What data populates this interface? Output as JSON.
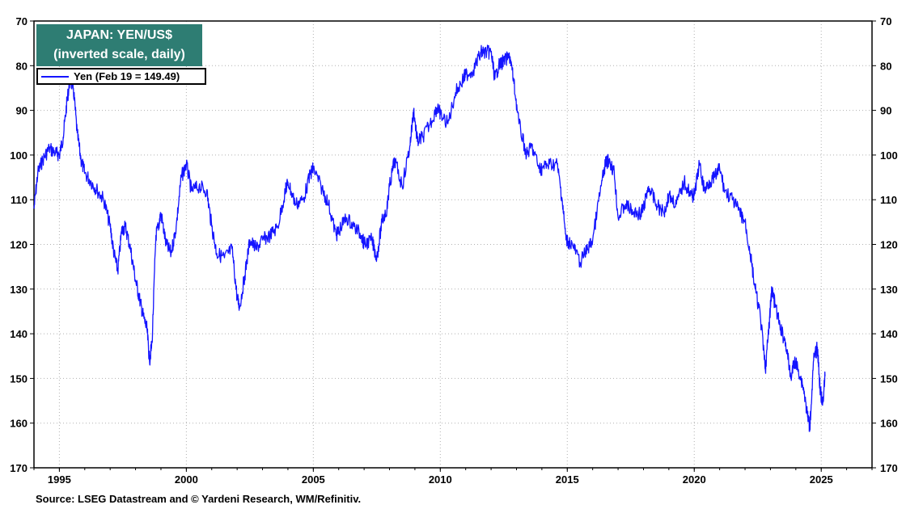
{
  "chart_data": {
    "type": "line",
    "title": "JAPAN: YEN/US$",
    "subtitle": "(inverted scale, daily)",
    "legend": "Yen (Feb 19 = 149.49)",
    "legend_position": "top-left",
    "y_inverted": true,
    "ylim": [
      70,
      170
    ],
    "y_ticks": [
      70,
      80,
      90,
      100,
      110,
      120,
      130,
      140,
      150,
      160,
      170
    ],
    "x_range": [
      1994,
      2027
    ],
    "x_ticks": [
      1995,
      2000,
      2005,
      2010,
      2015,
      2020,
      2025
    ],
    "grid": true,
    "line_color": "#1414ff",
    "series": [
      {
        "name": "Yen",
        "points": [
          [
            1994.0,
            112
          ],
          [
            1994.15,
            104
          ],
          [
            1994.35,
            101
          ],
          [
            1994.6,
            98.5
          ],
          [
            1994.85,
            99.5
          ],
          [
            1995.0,
            100
          ],
          [
            1995.15,
            96
          ],
          [
            1995.3,
            88
          ],
          [
            1995.42,
            83
          ],
          [
            1995.55,
            85
          ],
          [
            1995.7,
            95
          ],
          [
            1995.85,
            101
          ],
          [
            1996.0,
            104
          ],
          [
            1996.25,
            106
          ],
          [
            1996.5,
            108
          ],
          [
            1996.75,
            110
          ],
          [
            1997.0,
            116
          ],
          [
            1997.15,
            122
          ],
          [
            1997.3,
            126
          ],
          [
            1997.45,
            117
          ],
          [
            1997.6,
            116
          ],
          [
            1997.8,
            121
          ],
          [
            1998.0,
            128
          ],
          [
            1998.15,
            132
          ],
          [
            1998.3,
            136
          ],
          [
            1998.45,
            139
          ],
          [
            1998.55,
            146
          ],
          [
            1998.65,
            142
          ],
          [
            1998.8,
            118
          ],
          [
            1998.9,
            116
          ],
          [
            1999.0,
            113
          ],
          [
            1999.2,
            120
          ],
          [
            1999.4,
            122
          ],
          [
            1999.6,
            116
          ],
          [
            1999.8,
            105
          ],
          [
            2000.0,
            102
          ],
          [
            2000.2,
            108
          ],
          [
            2000.5,
            107
          ],
          [
            2000.8,
            108
          ],
          [
            2001.0,
            116
          ],
          [
            2001.2,
            122
          ],
          [
            2001.5,
            123
          ],
          [
            2001.8,
            121
          ],
          [
            2002.0,
            132
          ],
          [
            2002.1,
            134
          ],
          [
            2002.3,
            127
          ],
          [
            2002.5,
            119
          ],
          [
            2002.75,
            121
          ],
          [
            2003.0,
            119
          ],
          [
            2003.3,
            118
          ],
          [
            2003.6,
            116
          ],
          [
            2003.9,
            108
          ],
          [
            2004.0,
            106
          ],
          [
            2004.3,
            111
          ],
          [
            2004.6,
            110
          ],
          [
            2004.9,
            104
          ],
          [
            2005.0,
            103
          ],
          [
            2005.3,
            107
          ],
          [
            2005.6,
            111
          ],
          [
            2005.9,
            118
          ],
          [
            2006.0,
            117
          ],
          [
            2006.3,
            114
          ],
          [
            2006.6,
            116
          ],
          [
            2006.9,
            118
          ],
          [
            2007.0,
            120
          ],
          [
            2007.3,
            119
          ],
          [
            2007.5,
            123
          ],
          [
            2007.7,
            115
          ],
          [
            2007.9,
            112
          ],
          [
            2008.0,
            107
          ],
          [
            2008.2,
            101
          ],
          [
            2008.5,
            107
          ],
          [
            2008.8,
            98
          ],
          [
            2008.95,
            90
          ],
          [
            2009.1,
            97
          ],
          [
            2009.3,
            96
          ],
          [
            2009.6,
            93
          ],
          [
            2009.9,
            89
          ],
          [
            2010.0,
            91
          ],
          [
            2010.3,
            93
          ],
          [
            2010.6,
            86
          ],
          [
            2010.9,
            83
          ],
          [
            2011.0,
            82
          ],
          [
            2011.3,
            81
          ],
          [
            2011.6,
            77
          ],
          [
            2011.8,
            77
          ],
          [
            2012.0,
            77
          ],
          [
            2012.15,
            83
          ],
          [
            2012.3,
            80
          ],
          [
            2012.5,
            79
          ],
          [
            2012.75,
            78
          ],
          [
            2012.9,
            84
          ],
          [
            2013.1,
            93
          ],
          [
            2013.4,
            100
          ],
          [
            2013.6,
            98
          ],
          [
            2013.9,
            103
          ],
          [
            2014.0,
            103
          ],
          [
            2014.3,
            102
          ],
          [
            2014.6,
            102
          ],
          [
            2014.8,
            110
          ],
          [
            2014.95,
            119
          ],
          [
            2015.2,
            120
          ],
          [
            2015.5,
            124
          ],
          [
            2015.8,
            121
          ],
          [
            2016.0,
            119
          ],
          [
            2016.3,
            108
          ],
          [
            2016.5,
            102
          ],
          [
            2016.65,
            101
          ],
          [
            2016.85,
            104
          ],
          [
            2017.0,
            114
          ],
          [
            2017.3,
            111
          ],
          [
            2017.6,
            113
          ],
          [
            2017.9,
            113
          ],
          [
            2018.0,
            112
          ],
          [
            2018.2,
            107
          ],
          [
            2018.5,
            111
          ],
          [
            2018.8,
            113
          ],
          [
            2019.0,
            109
          ],
          [
            2019.3,
            111
          ],
          [
            2019.6,
            106
          ],
          [
            2019.9,
            109
          ],
          [
            2020.0,
            109
          ],
          [
            2020.2,
            102
          ],
          [
            2020.4,
            108
          ],
          [
            2020.6,
            106
          ],
          [
            2020.8,
            105
          ],
          [
            2021.0,
            103
          ],
          [
            2021.2,
            108
          ],
          [
            2021.5,
            110
          ],
          [
            2021.8,
            113
          ],
          [
            2022.0,
            115
          ],
          [
            2022.2,
            122
          ],
          [
            2022.4,
            130
          ],
          [
            2022.6,
            136
          ],
          [
            2022.8,
            148
          ],
          [
            2022.95,
            138
          ],
          [
            2023.05,
            130
          ],
          [
            2023.2,
            134
          ],
          [
            2023.4,
            139
          ],
          [
            2023.6,
            142
          ],
          [
            2023.8,
            150
          ],
          [
            2023.95,
            146
          ],
          [
            2024.1,
            148
          ],
          [
            2024.3,
            152
          ],
          [
            2024.45,
            158
          ],
          [
            2024.55,
            161
          ],
          [
            2024.7,
            146
          ],
          [
            2024.85,
            143
          ],
          [
            2024.95,
            152
          ],
          [
            2025.05,
            156
          ],
          [
            2025.15,
            149.49
          ]
        ]
      }
    ]
  },
  "source": "Source: LSEG Datastream and © Yardeni Research, WM/Refinitiv."
}
